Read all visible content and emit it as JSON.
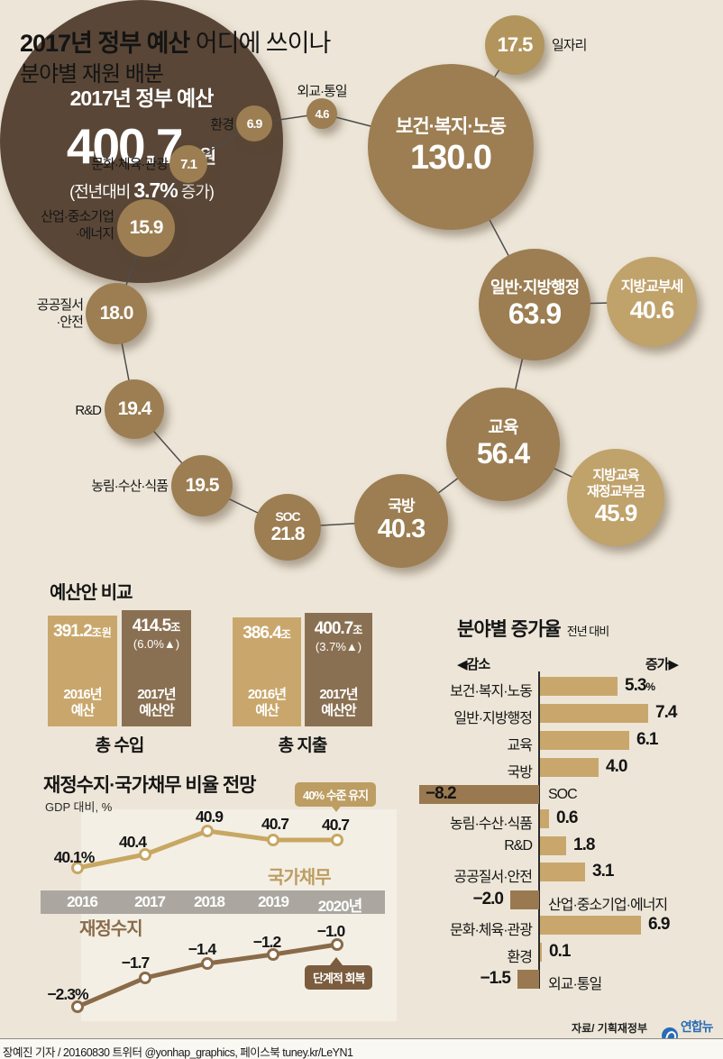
{
  "header": {
    "title_bold": "2017년 정부 예산",
    "title_rest": " 어디에 쓰이나",
    "subtitle": "분야별 재원 배분"
  },
  "bubble_chart": {
    "center": {
      "title": "2017년 정부 예산",
      "value": "400.7",
      "unit": "조원",
      "sub_prefix": "(전년대비",
      "sub_value": "3.7%",
      "sub_suffix": "증가)"
    },
    "bubbles": [
      {
        "id": "jobs",
        "name": "일자리",
        "value": "17.5",
        "label_placement": "outside"
      },
      {
        "id": "health",
        "name": "보건·복지·노동",
        "value": "130.0",
        "label_placement": "inside"
      },
      {
        "id": "admin",
        "name": "일반·지방행정",
        "value": "63.9",
        "label_placement": "inside"
      },
      {
        "id": "grant_local",
        "name": "지방교부세",
        "value": "40.6",
        "label_placement": "inside"
      },
      {
        "id": "edu",
        "name": "교육",
        "value": "56.4",
        "label_placement": "inside"
      },
      {
        "id": "edu_grant",
        "name": "지방교육\n재정교부금",
        "value": "45.9",
        "label_placement": "inside"
      },
      {
        "id": "defense",
        "name": "국방",
        "value": "40.3",
        "label_placement": "inside"
      },
      {
        "id": "soc",
        "name": "SOC",
        "value": "21.8",
        "label_placement": "inside"
      },
      {
        "id": "agri",
        "name": "농림·수산·식품",
        "value": "19.5",
        "label_placement": "outside"
      },
      {
        "id": "rnd",
        "name": "R&D",
        "value": "19.4",
        "label_placement": "outside"
      },
      {
        "id": "safety",
        "name": "공공질서\n·안전",
        "value": "18.0",
        "label_placement": "outside"
      },
      {
        "id": "industry",
        "name": "산업·중소기업\n·에너지",
        "value": "15.9",
        "label_placement": "outside"
      },
      {
        "id": "culture",
        "name": "문화·체육·관광",
        "value": "7.1",
        "label_placement": "outside"
      },
      {
        "id": "env",
        "name": "환경",
        "value": "6.9",
        "label_placement": "outside"
      },
      {
        "id": "diplo",
        "name": "외교·통일",
        "value": "4.6",
        "label_placement": "outside"
      }
    ]
  },
  "budget_compare": {
    "section_title": "예산안 비교",
    "groups": [
      {
        "label": "총 수입",
        "bars": [
          {
            "value": "391.2",
            "unit": "조원",
            "sub": "",
            "year_label": "2016년\n예산"
          },
          {
            "value": "414.5",
            "unit": "조",
            "sub": "(6.0%▲)",
            "year_label": "2017년\n예산안"
          }
        ]
      },
      {
        "label": "총 지출",
        "bars": [
          {
            "value": "386.4",
            "unit": "조",
            "sub": "",
            "year_label": "2016년\n예산"
          },
          {
            "value": "400.7",
            "unit": "조",
            "sub": "(3.7%▲)",
            "year_label": "2017년\n예산안"
          }
        ]
      }
    ]
  },
  "growth_chart": {
    "title": "분야별 증가율",
    "subtitle": "전년 대비",
    "legend_left": "◀감소",
    "legend_right": "증가▶",
    "rows": [
      {
        "label": "보건·복지·노동",
        "value": 5.3,
        "value_label": "5.3",
        "suffix": "%"
      },
      {
        "label": "일반·지방행정",
        "value": 7.4,
        "value_label": "7.4"
      },
      {
        "label": "교육",
        "value": 6.1,
        "value_label": "6.1"
      },
      {
        "label": "국방",
        "value": 4.0,
        "value_label": "4.0"
      },
      {
        "label": "SOC",
        "value": -8.2,
        "value_label": "−8.2",
        "inside": true
      },
      {
        "label": "농림·수산·식품",
        "value": 0.6,
        "value_label": "0.6"
      },
      {
        "label": "R&D",
        "value": 1.8,
        "value_label": "1.8"
      },
      {
        "label": "공공질서·안전",
        "value": 3.1,
        "value_label": "3.1"
      },
      {
        "label": "산업·중소기업·에너지",
        "value": -2.0,
        "value_label": "−2.0"
      },
      {
        "label": "문화·체육·관광",
        "value": 6.9,
        "value_label": "6.9"
      },
      {
        "label": "환경",
        "value": 0.1,
        "value_label": "0.1"
      },
      {
        "label": "외교·통일",
        "value": -1.5,
        "value_label": "−1.5"
      }
    ]
  },
  "outlook_chart": {
    "title": "재정수지·국가채무 비율 전망",
    "subtitle": "GDP 대비, %",
    "badge_top": "40% 수준 유지",
    "badge_bottom": "단계적 회복",
    "years": [
      "2016",
      "2017",
      "2018",
      "2019",
      "2020년"
    ],
    "series": [
      {
        "name": "국가채무",
        "values": [
          40.1,
          40.4,
          40.9,
          40.7,
          40.7
        ],
        "labels": [
          "40.1%",
          "40.4",
          "40.9",
          "40.7",
          "40.7"
        ]
      },
      {
        "name": "재정수지",
        "values": [
          -2.3,
          -1.7,
          -1.4,
          -1.2,
          -1.0
        ],
        "labels": [
          "−2.3%",
          "−1.7",
          "−1.4",
          "−1.2",
          "−1.0"
        ]
      }
    ]
  },
  "footer": {
    "source": "자료/ 기획재정부",
    "logo_text": "연합뉴스",
    "byline": "장예진 기자 / 20160830 트위터 @yonhap_graphics, 페이스북 tuney.kr/LeYN1"
  },
  "chart_data": [
    {
      "type": "bubble",
      "title": "2017년 정부 예산 분야별 재원 배분 (조원)",
      "total": {
        "label": "2017년 정부 예산",
        "value": 400.7,
        "unit": "조원",
        "change_pct": 3.7
      },
      "items": [
        {
          "label": "보건·복지·노동",
          "value": 130.0
        },
        {
          "label": "일반·지방행정",
          "value": 63.9
        },
        {
          "label": "교육",
          "value": 56.4
        },
        {
          "label": "지방교육 재정교부금",
          "value": 45.9
        },
        {
          "label": "지방교부세",
          "value": 40.6
        },
        {
          "label": "국방",
          "value": 40.3
        },
        {
          "label": "SOC",
          "value": 21.8
        },
        {
          "label": "농림·수산·식품",
          "value": 19.5
        },
        {
          "label": "R&D",
          "value": 19.4
        },
        {
          "label": "공공질서·안전",
          "value": 18.0
        },
        {
          "label": "일자리",
          "value": 17.5
        },
        {
          "label": "산업·중소기업·에너지",
          "value": 15.9
        },
        {
          "label": "문화·체육·관광",
          "value": 7.1
        },
        {
          "label": "환경",
          "value": 6.9
        },
        {
          "label": "외교·통일",
          "value": 4.6
        }
      ]
    },
    {
      "type": "bar",
      "title": "예산안 비교 (조원)",
      "groups": [
        {
          "label": "총 수입",
          "categories": [
            "2016년 예산",
            "2017년 예산안"
          ],
          "values": [
            391.2,
            414.5
          ],
          "change_pct": 6.0
        },
        {
          "label": "총 지출",
          "categories": [
            "2016년 예산",
            "2017년 예산안"
          ],
          "values": [
            386.4,
            400.7
          ],
          "change_pct": 3.7
        }
      ]
    },
    {
      "type": "bar",
      "title": "분야별 증가율 (전년 대비, %)",
      "categories": [
        "보건·복지·노동",
        "일반·지방행정",
        "교육",
        "국방",
        "SOC",
        "농림·수산·식품",
        "R&D",
        "공공질서·안전",
        "산업·중소기업·에너지",
        "문화·체육·관광",
        "환경",
        "외교·통일"
      ],
      "values": [
        5.3,
        7.4,
        6.1,
        4.0,
        -8.2,
        0.6,
        1.8,
        3.1,
        -2.0,
        6.9,
        0.1,
        -1.5
      ]
    },
    {
      "type": "line",
      "title": "재정수지·국가채무 비율 전망 (GDP 대비, %)",
      "x": [
        "2016",
        "2017",
        "2018",
        "2019",
        "2020"
      ],
      "series": [
        {
          "name": "국가채무",
          "values": [
            40.1,
            40.4,
            40.9,
            40.7,
            40.7
          ]
        },
        {
          "name": "재정수지",
          "values": [
            -2.3,
            -1.7,
            -1.4,
            -1.2,
            -1.0
          ]
        }
      ],
      "annotations": [
        "40% 수준 유지",
        "단계적 회복"
      ]
    }
  ]
}
